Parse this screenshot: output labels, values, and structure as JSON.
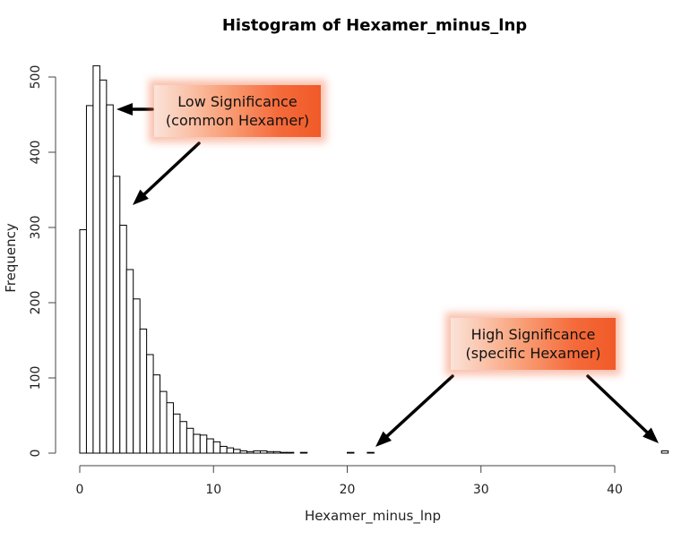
{
  "chart_data": {
    "type": "bar",
    "title": "Histogram of Hexamer_minus_lnp",
    "xlabel": "Hexamer_minus_lnp",
    "ylabel": "Frequency",
    "xlim": [
      0,
      44
    ],
    "ylim": [
      0,
      520
    ],
    "x_ticks": [
      0,
      10,
      20,
      30,
      40
    ],
    "y_ticks": [
      0,
      100,
      200,
      300,
      400,
      500
    ],
    "bin_width": 0.5,
    "bin_start": 0,
    "values": [
      297,
      462,
      515,
      496,
      463,
      368,
      303,
      244,
      205,
      165,
      131,
      104,
      82,
      67,
      52,
      42,
      33,
      25,
      24,
      19,
      15,
      9,
      7,
      5,
      3,
      2,
      3,
      3,
      2,
      2,
      1,
      1,
      0,
      1,
      0,
      0,
      0,
      0,
      0,
      0,
      1,
      0,
      0,
      1,
      0,
      0,
      0,
      0,
      0,
      0,
      0,
      0,
      0,
      0,
      0,
      0,
      0,
      0,
      0,
      0,
      0,
      0,
      0,
      0,
      0,
      0,
      0,
      0,
      0,
      0,
      0,
      0,
      0,
      0,
      0,
      0,
      0,
      0,
      0,
      0,
      0,
      0,
      0,
      0,
      0,
      0,
      0,
      3
    ],
    "grid": false,
    "bar_fill": "#ffffff",
    "bar_stroke": "#000000"
  },
  "annotations": {
    "low": {
      "text": "Low Significance\n(common Hexamer)"
    },
    "high": {
      "text": "High Significance\n(specific Hexamer)"
    },
    "color": "#f05a28"
  }
}
